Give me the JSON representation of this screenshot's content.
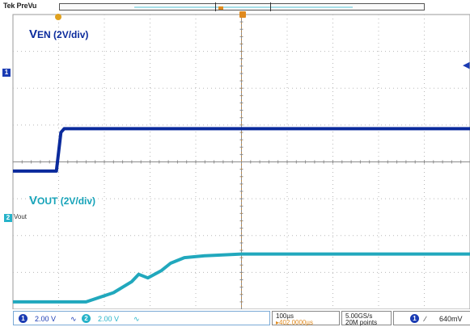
{
  "header": {
    "brand": "Tek PreVu"
  },
  "labels": {
    "ven_main": "V",
    "ven_sub": "EN",
    "ven_scale": " (2V/div)",
    "vout_main": "V",
    "vout_sub": "OUT",
    "vout_scale": " (2V/div)",
    "ch2_name": "Vout",
    "ch1_marker": "1",
    "ch2_marker": "2"
  },
  "status": {
    "ch1_num": "1",
    "ch1_scale": "2.00 V",
    "ch2_num": "2",
    "ch2_scale": "2.00 V",
    "timebase": "100µs",
    "trigger_pos": "▸402.0000µs",
    "sample_rate": "5.00GS/s",
    "record": "20M points",
    "trig_ch": "1",
    "trig_slope": "∕",
    "trig_level": "640mV"
  },
  "colors": {
    "ch1": "#0a2a9c",
    "ch2": "#21a8bd",
    "grid": "#b8b8b8",
    "trigger": "#e08a1e"
  },
  "chart_data": {
    "type": "line",
    "x_divisions": 10,
    "y_divisions": 8,
    "x_unit_per_div": "100µs",
    "grid": true,
    "series": [
      {
        "name": "VEN (2V/div)",
        "x": [
          0,
          0.95,
          1.05,
          1.12,
          2,
          10
        ],
        "y": [
          -0.25,
          -0.25,
          0.8,
          0.9,
          0.9,
          0.9
        ]
      },
      {
        "name": "VOUT (2V/div)",
        "x": [
          0,
          1.6,
          2.2,
          2.6,
          2.75,
          2.95,
          3.25,
          3.45,
          3.75,
          4.2,
          5,
          10
        ],
        "y": [
          -3.8,
          -3.8,
          -3.55,
          -3.25,
          -3.05,
          -3.15,
          -2.95,
          -2.75,
          -2.6,
          -2.55,
          -2.5,
          -2.5
        ]
      }
    ]
  }
}
